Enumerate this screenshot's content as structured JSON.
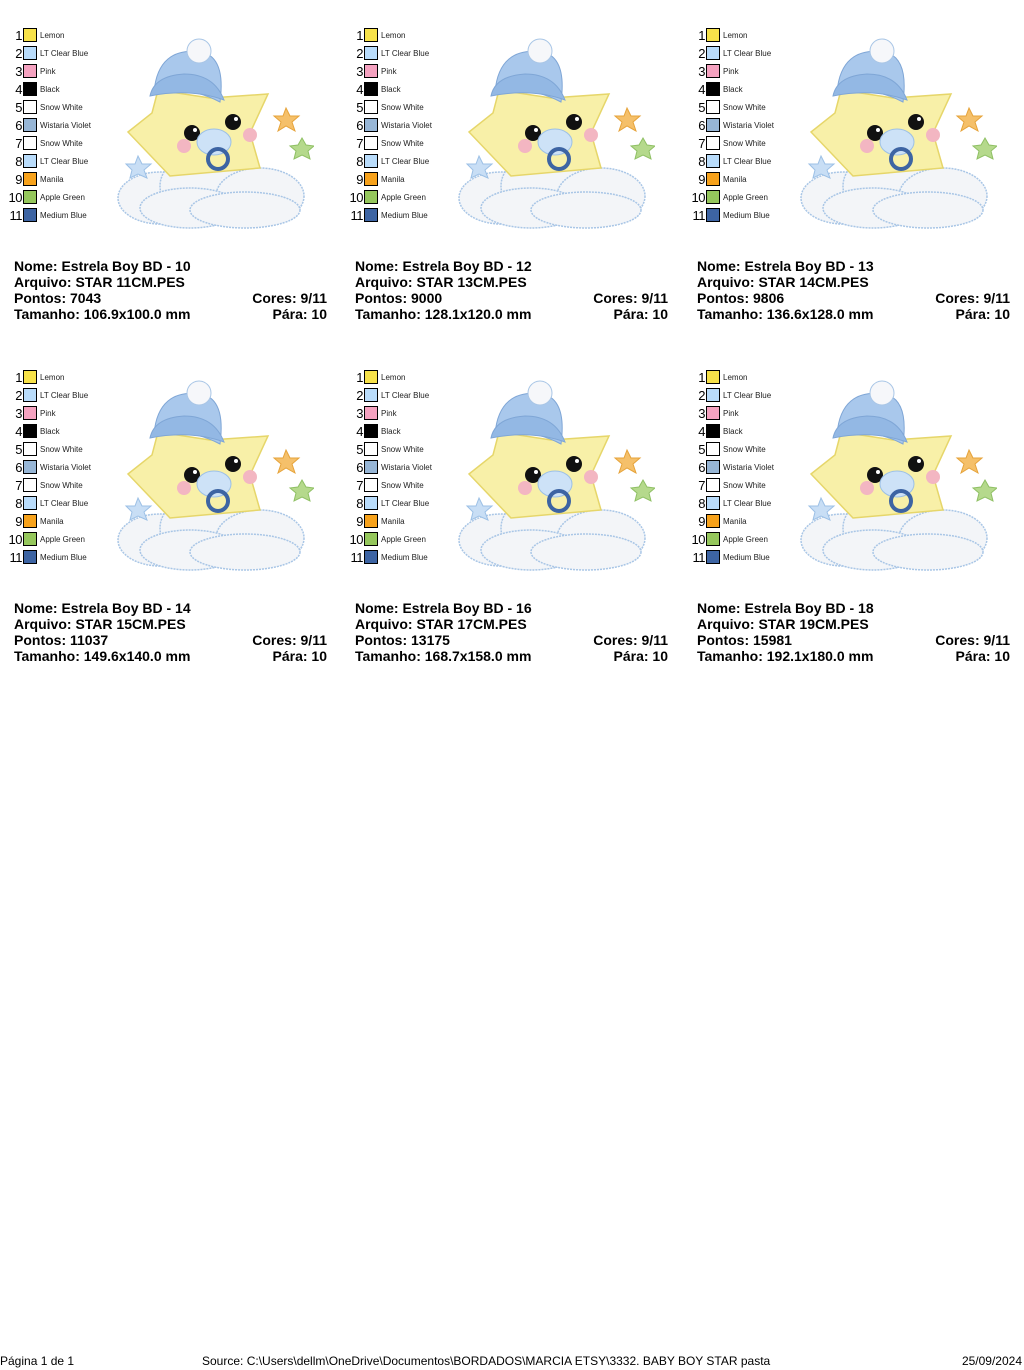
{
  "thread_colors": [
    {
      "n": "1",
      "name": "Lemon",
      "hex": "#f7e24a"
    },
    {
      "n": "2",
      "name": "LT Clear Blue",
      "hex": "#b9dcfb"
    },
    {
      "n": "3",
      "name": "Pink",
      "hex": "#f5a2c0"
    },
    {
      "n": "4",
      "name": "Black",
      "hex": "#000000"
    },
    {
      "n": "5",
      "name": "Snow White",
      "hex": "#ffffff"
    },
    {
      "n": "6",
      "name": "Wistaria Violet",
      "hex": "#97b6d6"
    },
    {
      "n": "7",
      "name": "Snow White",
      "hex": "#ffffff"
    },
    {
      "n": "8",
      "name": "LT Clear Blue",
      "hex": "#b9dcfb"
    },
    {
      "n": "9",
      "name": "Manila",
      "hex": "#f7a21b"
    },
    {
      "n": "10",
      "name": "Apple Green",
      "hex": "#95c75c"
    },
    {
      "n": "11",
      "name": "Medium Blue",
      "hex": "#3d64a3"
    }
  ],
  "labels": {
    "nome": "Nome:",
    "arquivo": "Arquivo:",
    "pontos": "Pontos:",
    "cores": "Cores:",
    "tamanho": "Tamanho:",
    "para": "Pára:"
  },
  "designs": [
    {
      "nome": "Estrela Boy BD - 10",
      "arquivo": "STAR 11CM.PES",
      "pontos": "7043",
      "cores": "9/11",
      "tamanho": "106.9x100.0 mm",
      "para": "10"
    },
    {
      "nome": "Estrela Boy BD - 12",
      "arquivo": "STAR 13CM.PES",
      "pontos": "9000",
      "cores": "9/11",
      "tamanho": "128.1x120.0 mm",
      "para": "10"
    },
    {
      "nome": "Estrela Boy BD - 13",
      "arquivo": "STAR 14CM.PES",
      "pontos": "9806",
      "cores": "9/11",
      "tamanho": "136.6x128.0 mm",
      "para": "10"
    },
    {
      "nome": "Estrela Boy BD - 14",
      "arquivo": "STAR 15CM.PES",
      "pontos": "11037",
      "cores": "9/11",
      "tamanho": "149.6x140.0 mm",
      "para": "10"
    },
    {
      "nome": "Estrela Boy BD - 16",
      "arquivo": "STAR 17CM.PES",
      "pontos": "13175",
      "cores": "9/11",
      "tamanho": "168.7x158.0 mm",
      "para": "10"
    },
    {
      "nome": "Estrela Boy BD - 18",
      "arquivo": "STAR 19CM.PES",
      "pontos": "15981",
      "cores": "9/11",
      "tamanho": "192.1x180.0 mm",
      "para": "10"
    }
  ],
  "footer": {
    "page": "Página 1 de 1",
    "source": "Source: C:\\Users\\dellm\\OneDrive\\Documentos\\BORDADOS\\MARCIA ETSY\\3332. BABY BOY STAR pasta",
    "date": "25/09/2024"
  }
}
